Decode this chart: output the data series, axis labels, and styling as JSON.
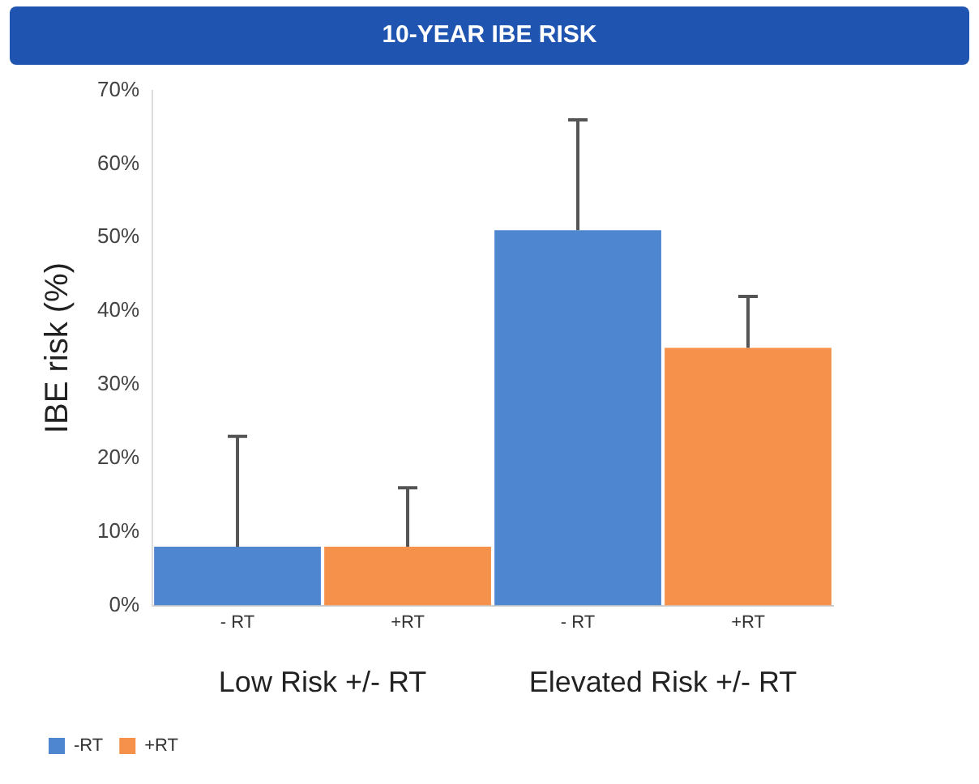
{
  "chart_data": {
    "type": "bar",
    "title": "10-YEAR IBE RISK",
    "ylabel": "IBE risk (%)",
    "categories": [
      "- RT",
      "+RT",
      "- RT",
      "+RT"
    ],
    "series": [
      {
        "name": "-RT",
        "color": "#4f86d0",
        "values": [
          8,
          null,
          51,
          null
        ],
        "errors": [
          [
            8,
            23
          ],
          null,
          [
            51,
            66
          ],
          null
        ]
      },
      {
        "name": "+RT",
        "color": "#f5914a",
        "values": [
          null,
          8,
          null,
          35
        ],
        "errors": [
          null,
          [
            8,
            16
          ],
          null,
          [
            35,
            42
          ]
        ]
      }
    ],
    "ylim": [
      0,
      70
    ],
    "yticks": [
      {
        "value": 0,
        "label": "0%"
      },
      {
        "value": 10,
        "label": "10%"
      },
      {
        "value": 20,
        "label": "20%"
      },
      {
        "value": 30,
        "label": "30%"
      },
      {
        "value": 40,
        "label": "40%"
      },
      {
        "value": 50,
        "label": "50%"
      },
      {
        "value": 60,
        "label": "60%"
      },
      {
        "value": 70,
        "label": "70%"
      }
    ],
    "annotations": [
      "Low Risk +/- RT",
      "Elevated Risk +/- RT"
    ],
    "grid": false,
    "legend": "bottom left"
  }
}
